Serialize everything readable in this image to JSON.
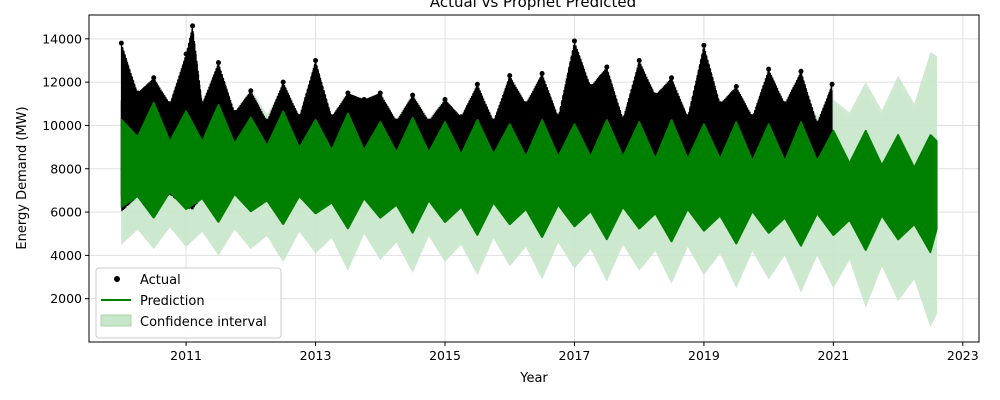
{
  "chart_data": {
    "type": "line",
    "title": "Actual vs Prophet Predicted",
    "xlabel": "Year",
    "ylabel": "Energy Demand (MW)",
    "xlim": [
      2009.5,
      2023.25
    ],
    "ylim": [
      0,
      15100
    ],
    "xticks": [
      2011,
      2013,
      2015,
      2017,
      2019,
      2021,
      2023
    ],
    "yticks": [
      2000,
      4000,
      6000,
      8000,
      10000,
      12000,
      14000
    ],
    "grid": true,
    "legend_position": "lower-left",
    "legend": [
      {
        "label": "Actual",
        "marker": "dot",
        "color": "#000000"
      },
      {
        "label": "Prediction",
        "marker": "line",
        "color": "#008000"
      },
      {
        "label": "Confidence interval",
        "marker": "patch",
        "color": "#c8e6c9"
      }
    ],
    "series": [
      {
        "name": "Actual",
        "kind": "scatter-envelope",
        "color": "#000000",
        "x": [
          2010.0,
          2010.25,
          2010.5,
          2010.75,
          2011.0,
          2011.1,
          2011.25,
          2011.5,
          2011.75,
          2012.0,
          2012.25,
          2012.5,
          2012.75,
          2013.0,
          2013.25,
          2013.5,
          2013.75,
          2014.0,
          2014.25,
          2014.5,
          2014.75,
          2015.0,
          2015.25,
          2015.5,
          2015.75,
          2016.0,
          2016.25,
          2016.5,
          2016.75,
          2017.0,
          2017.25,
          2017.5,
          2017.75,
          2018.0,
          2018.25,
          2018.5,
          2018.75,
          2019.0,
          2019.25,
          2019.5,
          2019.75,
          2020.0,
          2020.25,
          2020.5,
          2020.75,
          2020.98
        ],
        "upper": [
          13800,
          11500,
          12200,
          11000,
          13300,
          14600,
          11000,
          12900,
          10600,
          11600,
          10200,
          12000,
          10400,
          13000,
          10400,
          11500,
          11200,
          11500,
          10200,
          11400,
          10200,
          11200,
          10400,
          11900,
          10200,
          12300,
          11000,
          12400,
          10400,
          13900,
          11800,
          12700,
          10300,
          13000,
          11400,
          12200,
          10400,
          13700,
          11000,
          11800,
          10400,
          12600,
          11000,
          12500,
          10100,
          11900
        ],
        "lower": [
          6000,
          6700,
          6200,
          6800,
          6200,
          6100,
          6700,
          6300,
          6800,
          6100,
          6500,
          6200,
          6800,
          6200,
          6700,
          6100,
          6900,
          6100,
          6800,
          6100,
          6900,
          6100,
          6800,
          6100,
          6900,
          6100,
          6900,
          6200,
          6900,
          6000,
          6900,
          6100,
          6900,
          6000,
          6800,
          6100,
          6900,
          6000,
          6800,
          6100,
          6800,
          6000,
          6900,
          6000,
          6800,
          6000
        ]
      },
      {
        "name": "Prediction",
        "kind": "line-envelope",
        "color": "#008000",
        "x": [
          2010.0,
          2010.25,
          2010.5,
          2010.75,
          2011.0,
          2011.25,
          2011.5,
          2011.75,
          2012.0,
          2012.25,
          2012.5,
          2012.75,
          2013.0,
          2013.25,
          2013.5,
          2013.75,
          2014.0,
          2014.25,
          2014.5,
          2014.75,
          2015.0,
          2015.25,
          2015.5,
          2015.75,
          2016.0,
          2016.25,
          2016.5,
          2016.75,
          2017.0,
          2017.25,
          2017.5,
          2017.75,
          2018.0,
          2018.25,
          2018.5,
          2018.75,
          2019.0,
          2019.25,
          2019.5,
          2019.75,
          2020.0,
          2020.25,
          2020.5,
          2020.75,
          2021.0,
          2021.25,
          2021.5,
          2021.75,
          2022.0,
          2022.25,
          2022.5,
          2022.6
        ],
        "upper": [
          10300,
          9500,
          11100,
          9300,
          10700,
          9300,
          11000,
          9200,
          10400,
          9100,
          10700,
          9000,
          10300,
          8900,
          10600,
          8900,
          10200,
          8800,
          10400,
          8800,
          10200,
          8700,
          10300,
          8700,
          10100,
          8600,
          10300,
          8600,
          10100,
          8600,
          10300,
          8600,
          10200,
          8500,
          10300,
          8500,
          10100,
          8500,
          10200,
          8400,
          10100,
          8400,
          10200,
          8400,
          9800,
          8300,
          9800,
          8200,
          9600,
          8100,
          9600,
          9300
        ],
        "lower": [
          6200,
          6700,
          5700,
          6900,
          6100,
          6600,
          5500,
          6800,
          6000,
          6500,
          5400,
          6700,
          5900,
          6400,
          5200,
          6600,
          5700,
          6300,
          5000,
          6500,
          5500,
          6200,
          4900,
          6400,
          5400,
          6100,
          4800,
          6300,
          5300,
          6000,
          4700,
          6200,
          5200,
          5900,
          4600,
          6100,
          5100,
          5800,
          4500,
          6000,
          5000,
          5700,
          4400,
          5900,
          4900,
          5600,
          4200,
          5800,
          4700,
          5400,
          4100,
          5200
        ]
      },
      {
        "name": "Confidence interval",
        "kind": "band",
        "color": "#c8e6c9",
        "x": [
          2010.0,
          2010.25,
          2010.5,
          2010.75,
          2011.0,
          2011.25,
          2011.5,
          2011.75,
          2012.0,
          2012.25,
          2012.5,
          2012.75,
          2013.0,
          2013.25,
          2013.5,
          2013.75,
          2014.0,
          2014.25,
          2014.5,
          2014.75,
          2015.0,
          2015.25,
          2015.5,
          2015.75,
          2016.0,
          2016.25,
          2016.5,
          2016.75,
          2017.0,
          2017.25,
          2017.5,
          2017.75,
          2018.0,
          2018.25,
          2018.5,
          2018.75,
          2019.0,
          2019.25,
          2019.5,
          2019.75,
          2020.0,
          2020.25,
          2020.5,
          2020.75,
          2021.0,
          2021.25,
          2021.5,
          2021.75,
          2022.0,
          2022.25,
          2022.5,
          2022.6
        ],
        "upper": [
          11800,
          10800,
          12100,
          10700,
          11900,
          10700,
          12000,
          10600,
          11700,
          10500,
          11800,
          10500,
          11500,
          10400,
          11600,
          10400,
          11300,
          10300,
          11500,
          10300,
          11300,
          10200,
          11400,
          10300,
          11300,
          10200,
          11400,
          10200,
          11300,
          10200,
          11500,
          10200,
          11400,
          10100,
          11500,
          10200,
          11400,
          10100,
          11500,
          10200,
          11400,
          10200,
          11700,
          10400,
          11200,
          10600,
          12000,
          10700,
          12300,
          11000,
          13400,
          13200
        ],
        "lower": [
          4500,
          5200,
          4300,
          5300,
          4400,
          5100,
          4000,
          5200,
          4300,
          4900,
          3700,
          5100,
          4100,
          4800,
          3300,
          5000,
          3800,
          4600,
          3200,
          4900,
          3700,
          4500,
          3100,
          4800,
          3500,
          4400,
          2900,
          4600,
          3400,
          4300,
          2800,
          4500,
          3300,
          4200,
          2700,
          4400,
          3100,
          4100,
          2500,
          4200,
          2900,
          4000,
          2300,
          4000,
          2500,
          3800,
          1600,
          3500,
          1900,
          2900,
          700,
          1300
        ]
      }
    ]
  }
}
